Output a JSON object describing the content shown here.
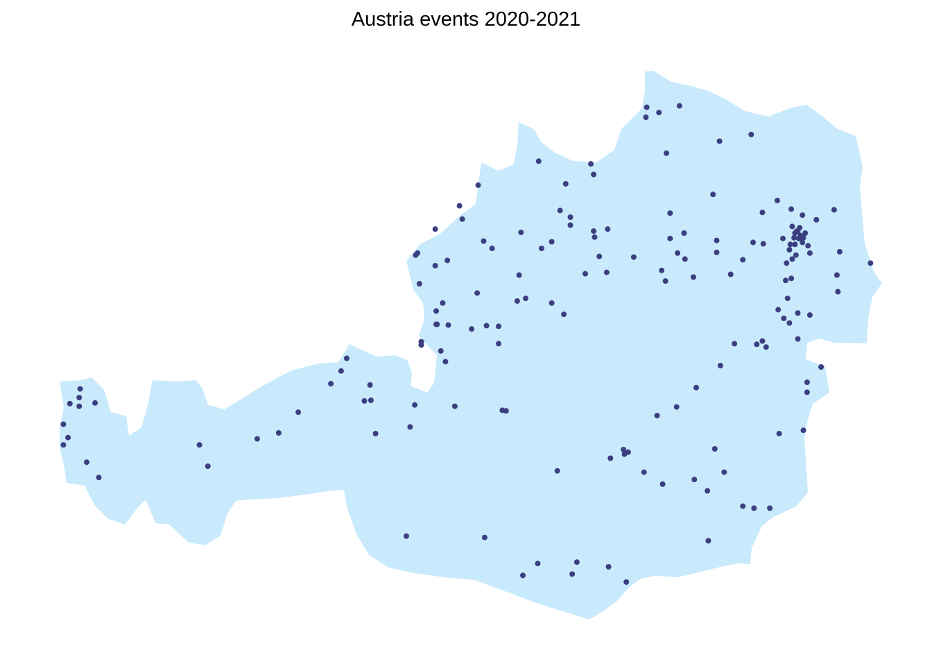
{
  "title": "Austria events 2020-2021",
  "colors": {
    "land": "#c8eafc",
    "point": "#3b3f80",
    "background": "#ffffff"
  },
  "region": "Austria",
  "map_data": {
    "type": "point map",
    "point_count": 196,
    "note_points_normalized": [
      [
        0.694,
        0.161
      ],
      [
        0.707,
        0.169
      ],
      [
        0.729,
        0.159
      ],
      [
        0.693,
        0.176
      ],
      [
        0.772,
        0.212
      ],
      [
        0.806,
        0.202
      ],
      [
        0.715,
        0.23
      ],
      [
        0.578,
        0.242
      ],
      [
        0.634,
        0.246
      ],
      [
        0.637,
        0.262
      ],
      [
        0.513,
        0.278
      ],
      [
        0.607,
        0.276
      ],
      [
        0.765,
        0.292
      ],
      [
        0.601,
        0.316
      ],
      [
        0.612,
        0.326
      ],
      [
        0.612,
        0.338
      ],
      [
        0.496,
        0.329
      ],
      [
        0.467,
        0.344
      ],
      [
        0.637,
        0.347
      ],
      [
        0.652,
        0.344
      ],
      [
        0.638,
        0.356
      ],
      [
        0.559,
        0.349
      ],
      [
        0.519,
        0.362
      ],
      [
        0.528,
        0.373
      ],
      [
        0.581,
        0.373
      ],
      [
        0.592,
        0.363
      ],
      [
        0.719,
        0.32
      ],
      [
        0.719,
        0.358
      ],
      [
        0.734,
        0.35
      ],
      [
        0.727,
        0.38
      ],
      [
        0.769,
        0.361
      ],
      [
        0.769,
        0.379
      ],
      [
        0.448,
        0.38
      ],
      [
        0.48,
        0.391
      ],
      [
        0.643,
        0.385
      ],
      [
        0.628,
        0.411
      ],
      [
        0.651,
        0.409
      ],
      [
        0.68,
        0.386
      ],
      [
        0.71,
        0.406
      ],
      [
        0.714,
        0.422
      ],
      [
        0.735,
        0.389
      ],
      [
        0.744,
        0.416
      ],
      [
        0.797,
        0.39
      ],
      [
        0.808,
        0.364
      ],
      [
        0.819,
        0.366
      ],
      [
        0.784,
        0.412
      ],
      [
        0.818,
        0.319
      ],
      [
        0.834,
        0.301
      ],
      [
        0.849,
        0.314
      ],
      [
        0.861,
        0.323
      ],
      [
        0.876,
        0.33
      ],
      [
        0.895,
        0.315
      ],
      [
        0.85,
        0.34
      ],
      [
        0.852,
        0.357
      ],
      [
        0.84,
        0.358
      ],
      [
        0.848,
        0.367
      ],
      [
        0.858,
        0.357
      ],
      [
        0.847,
        0.375
      ],
      [
        0.854,
        0.383
      ],
      [
        0.85,
        0.389
      ],
      [
        0.864,
        0.35
      ],
      [
        0.869,
        0.38
      ],
      [
        0.844,
        0.395
      ],
      [
        0.843,
        0.421
      ],
      [
        0.849,
        0.418
      ],
      [
        0.845,
        0.448
      ],
      [
        0.853,
        0.367
      ],
      [
        0.857,
        0.358
      ],
      [
        0.861,
        0.364
      ],
      [
        0.859,
        0.354
      ],
      [
        0.858,
        0.342
      ],
      [
        0.855,
        0.347
      ],
      [
        0.853,
        0.35
      ],
      [
        0.856,
        0.348
      ],
      [
        0.862,
        0.357
      ],
      [
        0.867,
        0.369
      ],
      [
        0.901,
        0.378
      ],
      [
        0.934,
        0.395
      ],
      [
        0.898,
        0.413
      ],
      [
        0.899,
        0.438
      ],
      [
        0.856,
        0.47
      ],
      [
        0.841,
        0.478
      ],
      [
        0.847,
        0.485
      ],
      [
        0.869,
        0.473
      ],
      [
        0.835,
        0.465
      ],
      [
        0.818,
        0.512
      ],
      [
        0.812,
        0.517
      ],
      [
        0.822,
        0.521
      ],
      [
        0.788,
        0.516
      ],
      [
        0.856,
        0.509
      ],
      [
        0.881,
        0.551
      ],
      [
        0.866,
        0.574
      ],
      [
        0.866,
        0.589
      ],
      [
        0.773,
        0.549
      ],
      [
        0.747,
        0.582
      ],
      [
        0.726,
        0.611
      ],
      [
        0.705,
        0.624
      ],
      [
        0.836,
        0.651
      ],
      [
        0.862,
        0.646
      ],
      [
        0.767,
        0.674
      ],
      [
        0.777,
        0.709
      ],
      [
        0.797,
        0.76
      ],
      [
        0.809,
        0.763
      ],
      [
        0.826,
        0.763
      ],
      [
        0.669,
        0.675
      ],
      [
        0.674,
        0.679
      ],
      [
        0.67,
        0.682
      ],
      [
        0.655,
        0.688
      ],
      [
        0.691,
        0.709
      ],
      [
        0.711,
        0.727
      ],
      [
        0.745,
        0.72
      ],
      [
        0.759,
        0.737
      ],
      [
        0.598,
        0.707
      ],
      [
        0.76,
        0.812
      ],
      [
        0.436,
        0.805
      ],
      [
        0.52,
        0.807
      ],
      [
        0.577,
        0.846
      ],
      [
        0.561,
        0.864
      ],
      [
        0.619,
        0.844
      ],
      [
        0.614,
        0.862
      ],
      [
        0.653,
        0.851
      ],
      [
        0.672,
        0.874
      ],
      [
        0.467,
        0.399
      ],
      [
        0.45,
        0.426
      ],
      [
        0.512,
        0.44
      ],
      [
        0.446,
        0.383
      ],
      [
        0.475,
        0.455
      ],
      [
        0.522,
        0.489
      ],
      [
        0.506,
        0.494
      ],
      [
        0.481,
        0.488
      ],
      [
        0.468,
        0.487
      ],
      [
        0.452,
        0.518
      ],
      [
        0.473,
        0.527
      ],
      [
        0.468,
        0.467
      ],
      [
        0.469,
        0.487
      ],
      [
        0.555,
        0.452
      ],
      [
        0.592,
        0.455
      ],
      [
        0.557,
        0.413
      ],
      [
        0.535,
        0.49
      ],
      [
        0.564,
        0.448
      ],
      [
        0.478,
        0.543
      ],
      [
        0.452,
        0.513
      ],
      [
        0.535,
        0.516
      ],
      [
        0.539,
        0.616
      ],
      [
        0.543,
        0.617
      ],
      [
        0.445,
        0.608
      ],
      [
        0.488,
        0.61
      ],
      [
        0.403,
        0.651
      ],
      [
        0.44,
        0.641
      ],
      [
        0.398,
        0.601
      ],
      [
        0.391,
        0.602
      ],
      [
        0.355,
        0.576
      ],
      [
        0.366,
        0.557
      ],
      [
        0.372,
        0.538
      ],
      [
        0.397,
        0.578
      ],
      [
        0.32,
        0.619
      ],
      [
        0.276,
        0.659
      ],
      [
        0.299,
        0.65
      ],
      [
        0.214,
        0.668
      ],
      [
        0.223,
        0.7
      ],
      [
        0.086,
        0.584
      ],
      [
        0.085,
        0.597
      ],
      [
        0.085,
        0.61
      ],
      [
        0.102,
        0.605
      ],
      [
        0.075,
        0.606
      ],
      [
        0.068,
        0.637
      ],
      [
        0.073,
        0.657
      ],
      [
        0.068,
        0.668
      ],
      [
        0.093,
        0.694
      ],
      [
        0.106,
        0.717
      ],
      [
        0.493,
        0.309
      ],
      [
        0.605,
        0.472
      ]
    ]
  }
}
